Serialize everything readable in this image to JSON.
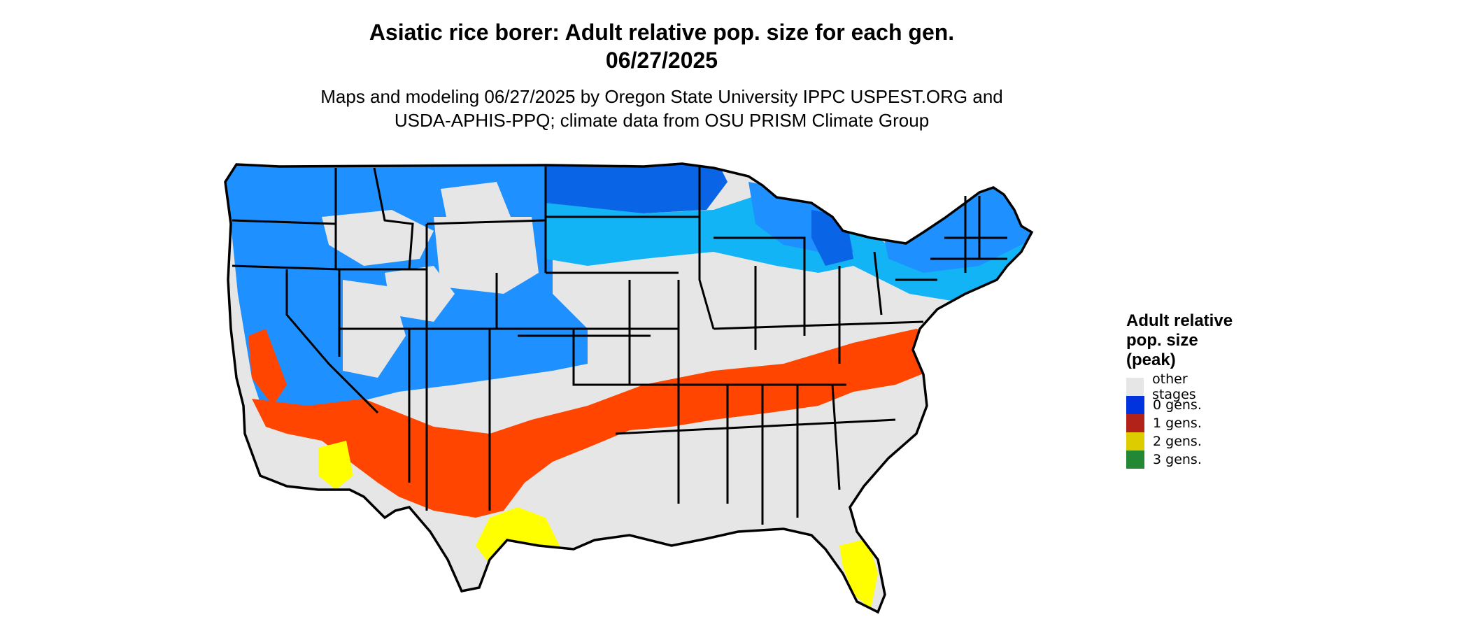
{
  "title": {
    "line1": "Asiatic rice borer: Adult relative pop. size for each gen.",
    "line2": "06/27/2025"
  },
  "subtitle": {
    "line1": "Maps and modeling 06/27/2025 by Oregon State University IPPC USPEST.ORG and",
    "line2": "USDA-APHIS-PPQ; climate data from OSU PRISM Climate Group"
  },
  "legend": {
    "title_line1": "Adult relative",
    "title_line2": "pop. size",
    "title_line3": "(peak)",
    "items": [
      {
        "label": "other stages",
        "color": "#e6e6e6"
      },
      {
        "label": "0 gens.",
        "color": "#0033dd"
      },
      {
        "label": "1 gens.",
        "color": "#b22218"
      },
      {
        "label": "2 gens.",
        "color": "#ddcc00"
      },
      {
        "label": "3 gens.",
        "color": "#228833"
      }
    ]
  },
  "map_colors": {
    "land": "#e6e6e6",
    "blue_mid": "#1e90ff",
    "blue_dark": "#0a64e6",
    "blue_light": "#12b4f5",
    "orange": "#ff4500",
    "yellow": "#ffff00",
    "border": "#000000"
  }
}
